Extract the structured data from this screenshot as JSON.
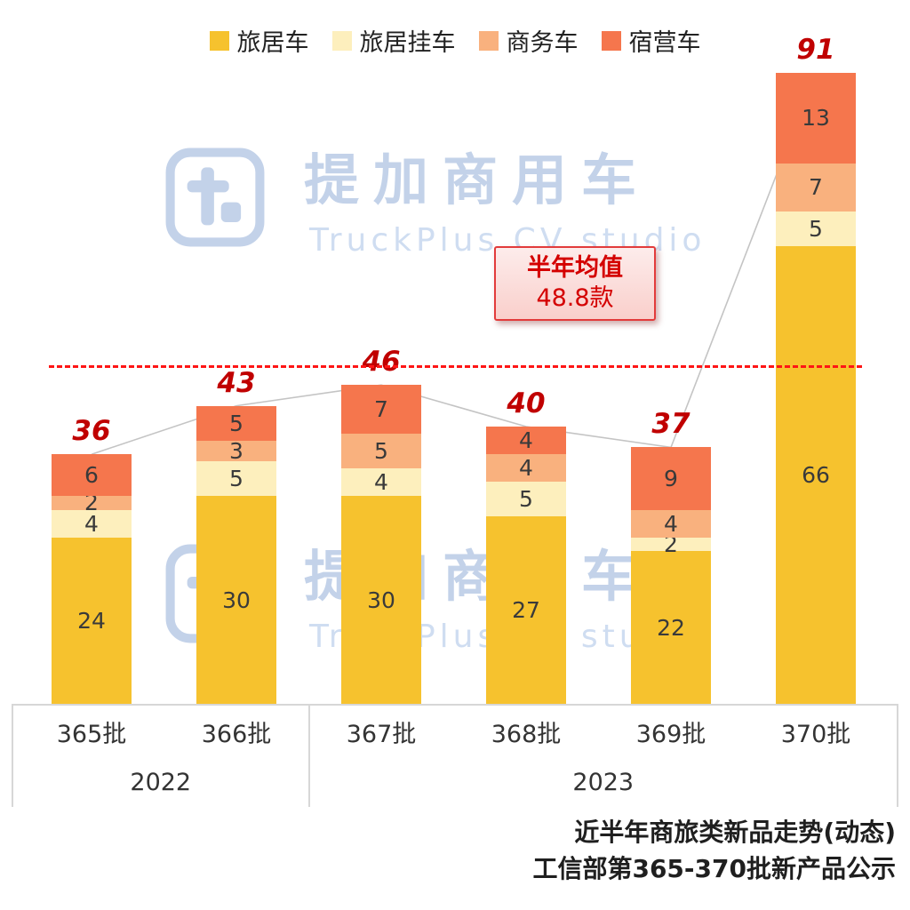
{
  "legend": {
    "items": [
      {
        "label": "旅居车",
        "color": "#f6c22e"
      },
      {
        "label": "旅居挂车",
        "color": "#fdefbd"
      },
      {
        "label": "商务车",
        "color": "#f9b17e"
      },
      {
        "label": "宿营车",
        "color": "#f5764d"
      }
    ]
  },
  "watermark": {
    "title": "提加商用车",
    "subtitle": "TruckPlus CV studio"
  },
  "annotation": {
    "line1": "半年均值",
    "line2": "48.8款"
  },
  "footer": {
    "line1": "近半年商旅类新品走势(动态)",
    "line2": "工信部第365-370批新产品公示"
  },
  "chart_data": {
    "type": "bar",
    "stacked": true,
    "title": "近半年商旅类新品走势(动态)",
    "categories": [
      "365批",
      "366批",
      "367批",
      "368批",
      "369批",
      "370批"
    ],
    "year_groups": [
      {
        "label": "2022",
        "span": 2
      },
      {
        "label": "2023",
        "span": 4
      }
    ],
    "series": [
      {
        "name": "旅居车",
        "color": "#f6c22e",
        "values": [
          24,
          30,
          30,
          27,
          22,
          66
        ]
      },
      {
        "name": "旅居挂车",
        "color": "#fdefbd",
        "values": [
          4,
          5,
          4,
          5,
          2,
          5
        ]
      },
      {
        "name": "商务车",
        "color": "#f9b17e",
        "values": [
          2,
          3,
          5,
          4,
          4,
          7
        ]
      },
      {
        "name": "宿营车",
        "color": "#f5764d",
        "values": [
          6,
          5,
          7,
          4,
          9,
          13
        ]
      }
    ],
    "totals": [
      36,
      43,
      46,
      40,
      37,
      91
    ],
    "average_line": {
      "value": 48.8,
      "label": "半年均值 48.8款",
      "color": "#fe1515",
      "style": "dashed"
    },
    "total_line_color": "#c4c4c4",
    "totals_color": "#c00000",
    "ylim": [
      0,
      95
    ],
    "grid": false,
    "legend_position": "top",
    "xlabel": "",
    "ylabel": ""
  }
}
